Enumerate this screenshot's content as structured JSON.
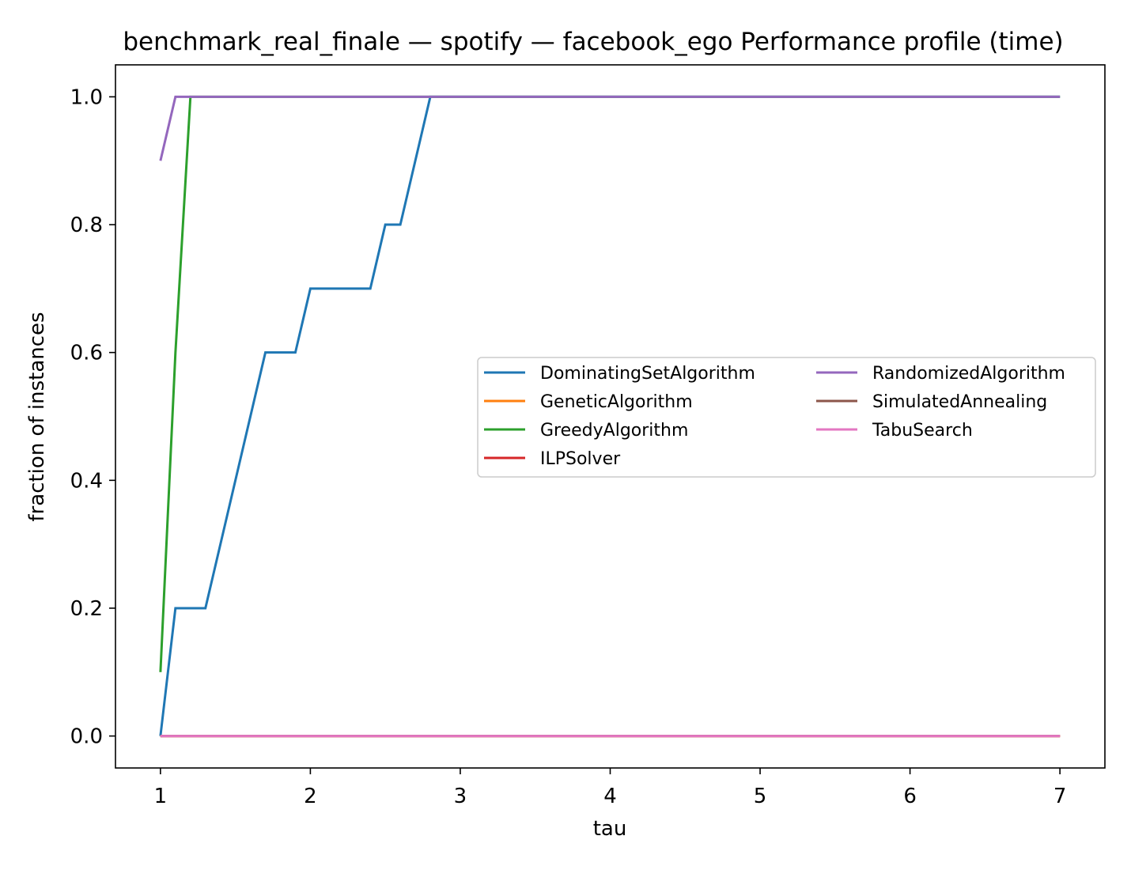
{
  "chart_data": {
    "type": "line",
    "title": "benchmark_real_finale — spotify — facebook_ego Performance profile (time)",
    "xlabel": "tau",
    "ylabel": "fraction of instances",
    "xlim": [
      0.7,
      7.3
    ],
    "ylim": [
      -0.05,
      1.05
    ],
    "xticks": [
      1,
      2,
      3,
      4,
      5,
      6,
      7
    ],
    "yticks": [
      0.0,
      0.2,
      0.4,
      0.6,
      0.8,
      1.0
    ],
    "xtick_labels": [
      "1",
      "2",
      "3",
      "4",
      "5",
      "6",
      "7"
    ],
    "ytick_labels": [
      "0.0",
      "0.2",
      "0.4",
      "0.6",
      "0.8",
      "1.0"
    ],
    "grid": false,
    "legend_position": "center-right",
    "legend_columns": 2,
    "series": [
      {
        "name": "DominatingSetAlgorithm",
        "color": "#1f77b4",
        "x": [
          1.0,
          1.1,
          1.3,
          1.7,
          1.9,
          2.0,
          2.4,
          2.5,
          2.6,
          2.8,
          7.0
        ],
        "y": [
          0.0,
          0.2,
          0.2,
          0.6,
          0.6,
          0.7,
          0.7,
          0.8,
          0.8,
          1.0,
          1.0
        ]
      },
      {
        "name": "GeneticAlgorithm",
        "color": "#ff7f0e",
        "x": [
          1.0,
          7.0
        ],
        "y": [
          0.0,
          0.0
        ]
      },
      {
        "name": "GreedyAlgorithm",
        "color": "#2ca02c",
        "x": [
          1.0,
          1.1,
          1.2,
          7.0
        ],
        "y": [
          0.1,
          0.6,
          1.0,
          1.0
        ]
      },
      {
        "name": "ILPSolver",
        "color": "#d62728",
        "x": [
          1.0,
          7.0
        ],
        "y": [
          0.0,
          0.0
        ]
      },
      {
        "name": "RandomizedAlgorithm",
        "color": "#9467bd",
        "x": [
          1.0,
          1.1,
          7.0
        ],
        "y": [
          0.9,
          1.0,
          1.0
        ]
      },
      {
        "name": "SimulatedAnnealing",
        "color": "#8c564b",
        "x": [
          1.0,
          7.0
        ],
        "y": [
          0.0,
          0.0
        ]
      },
      {
        "name": "TabuSearch",
        "color": "#e377c2",
        "x": [
          1.0,
          7.0
        ],
        "y": [
          0.0,
          0.0
        ]
      }
    ]
  }
}
